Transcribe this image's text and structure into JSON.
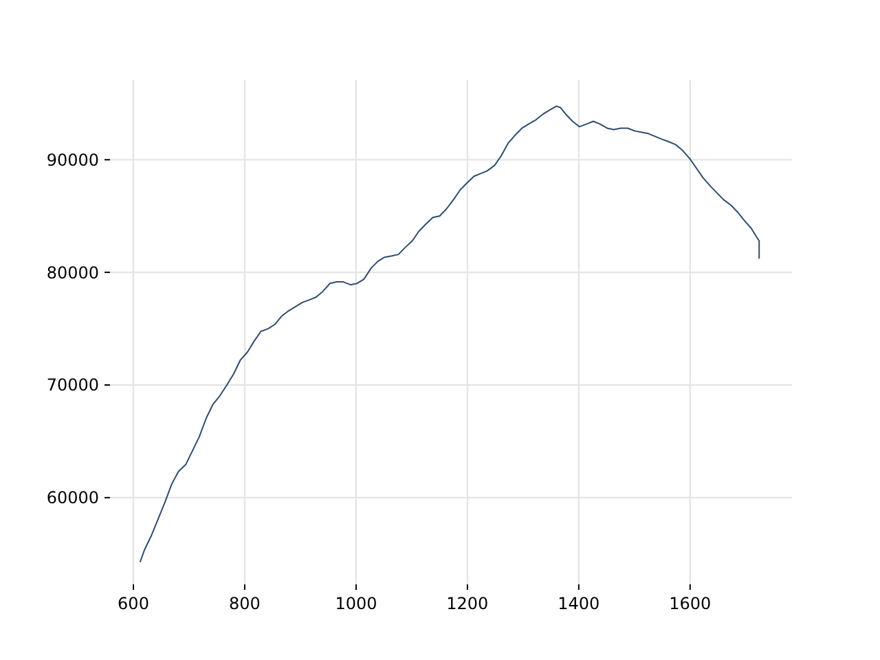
{
  "chart_data": {
    "type": "line",
    "xlim": [
      558,
      1783
    ],
    "ylim": [
      52300,
      97100
    ],
    "xticks": [
      600,
      800,
      1000,
      1200,
      1400,
      1600
    ],
    "yticks": [
      60000,
      70000,
      80000,
      90000
    ],
    "grid": true,
    "line_style": "solid",
    "marker": "none",
    "series": [
      {
        "color": "#2f4b6e",
        "x": [
          612,
          620,
          632,
          644,
          657,
          669,
          681,
          694,
          706,
          718,
          731,
          743,
          755,
          768,
          780,
          792,
          805,
          817,
          829,
          842,
          854,
          866,
          879,
          891,
          903,
          916,
          928,
          940,
          953,
          965,
          977,
          990,
          1002,
          1014,
          1027,
          1039,
          1051,
          1064,
          1076,
          1088,
          1101,
          1113,
          1125,
          1138,
          1150,
          1162,
          1175,
          1187,
          1199,
          1212,
          1224,
          1236,
          1249,
          1261,
          1273,
          1286,
          1298,
          1310,
          1323,
          1335,
          1347,
          1360,
          1367,
          1377,
          1389,
          1401,
          1414,
          1426,
          1438,
          1451,
          1463,
          1475,
          1488,
          1500,
          1512,
          1525,
          1537,
          1549,
          1562,
          1574,
          1586,
          1599,
          1611,
          1623,
          1636,
          1648,
          1660,
          1673,
          1685,
          1697,
          1710,
          1719,
          1724,
          1724
        ],
        "values": [
          54270,
          55370,
          56600,
          58050,
          59630,
          61220,
          62320,
          62930,
          64150,
          65370,
          67070,
          68290,
          69020,
          70000,
          70980,
          72200,
          72930,
          73900,
          74760,
          75000,
          75370,
          76100,
          76590,
          76950,
          77320,
          77560,
          77800,
          78290,
          79020,
          79150,
          79150,
          78900,
          79020,
          79390,
          80370,
          80980,
          81340,
          81460,
          81590,
          82200,
          82800,
          83660,
          84270,
          84880,
          85000,
          85610,
          86460,
          87320,
          87930,
          88540,
          88780,
          89020,
          89510,
          90370,
          91460,
          92200,
          92800,
          93170,
          93540,
          94020,
          94390,
          94760,
          94630,
          94020,
          93410,
          92930,
          93170,
          93410,
          93170,
          92800,
          92680,
          92800,
          92800,
          92560,
          92440,
          92320,
          92070,
          91830,
          91590,
          91340,
          90850,
          90120,
          89270,
          88410,
          87680,
          87070,
          86460,
          85980,
          85370,
          84630,
          83900,
          83170,
          82800,
          81220
        ]
      }
    ]
  }
}
